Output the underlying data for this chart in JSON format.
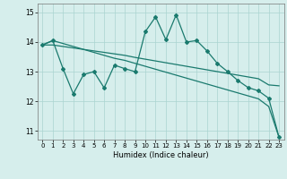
{
  "title": "",
  "xlabel": "Humidex (Indice chaleur)",
  "xlim": [
    -0.5,
    23.5
  ],
  "ylim": [
    10.7,
    15.3
  ],
  "yticks": [
    11,
    12,
    13,
    14,
    15
  ],
  "xticks": [
    0,
    1,
    2,
    3,
    4,
    5,
    6,
    7,
    8,
    9,
    10,
    11,
    12,
    13,
    14,
    15,
    16,
    17,
    18,
    19,
    20,
    21,
    22,
    23
  ],
  "bg_color": "#d6eeec",
  "grid_color": "#aad4d0",
  "line_color": "#1a7a6e",
  "line1_y": [
    13.9,
    14.05,
    13.95,
    13.85,
    13.75,
    13.65,
    13.55,
    13.45,
    13.38,
    13.28,
    13.18,
    13.08,
    12.98,
    12.88,
    12.78,
    12.68,
    12.58,
    12.48,
    12.38,
    12.28,
    12.18,
    12.08,
    11.82,
    10.78
  ],
  "line2_y": [
    13.9,
    13.9,
    13.85,
    13.8,
    13.75,
    13.7,
    13.65,
    13.6,
    13.55,
    13.48,
    13.42,
    13.36,
    13.3,
    13.24,
    13.18,
    13.12,
    13.06,
    13.0,
    12.94,
    12.88,
    12.82,
    12.76,
    12.55,
    12.52
  ],
  "line3_y": [
    13.9,
    14.05,
    13.1,
    12.25,
    12.9,
    13.0,
    12.45,
    13.22,
    13.1,
    13.0,
    14.35,
    14.85,
    14.08,
    14.92,
    14.0,
    14.05,
    13.7,
    13.28,
    13.0,
    12.7,
    12.46,
    12.35,
    12.1,
    10.78
  ]
}
